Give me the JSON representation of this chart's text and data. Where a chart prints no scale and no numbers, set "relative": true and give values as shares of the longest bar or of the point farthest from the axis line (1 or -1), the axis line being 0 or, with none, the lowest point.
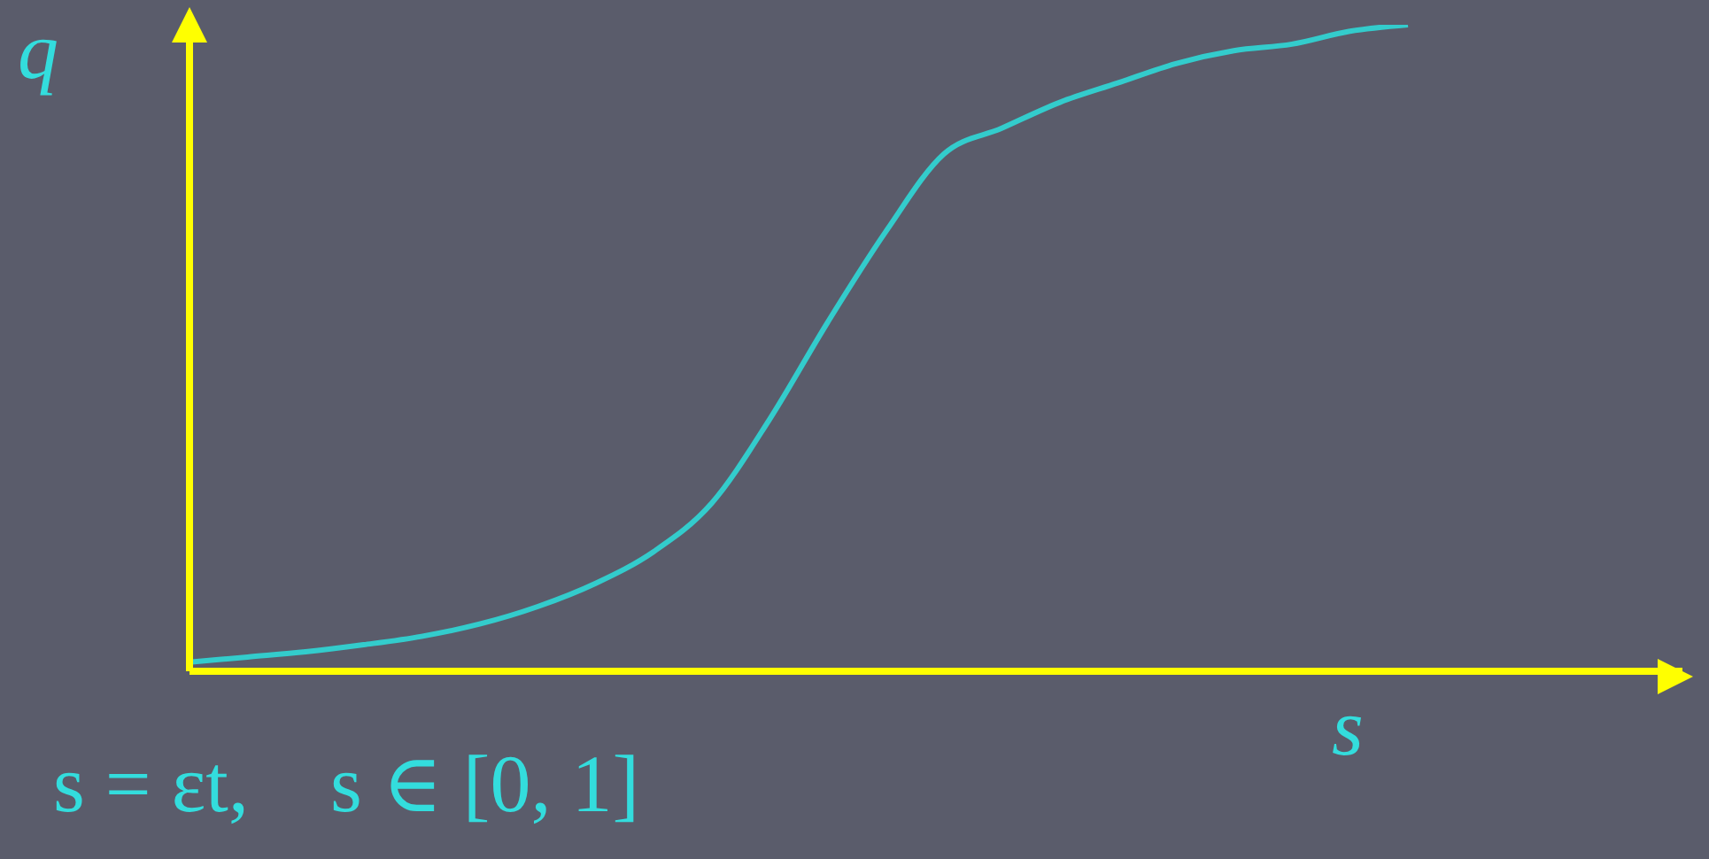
{
  "chart_data": {
    "type": "line",
    "relative": true,
    "xlabel": "s",
    "ylabel": "q",
    "annotations": [
      "s = εt,    s ∈ [0, 1]"
    ],
    "categories": [
      null,
      null,
      null,
      null,
      null,
      null,
      null,
      null,
      null,
      null,
      null,
      null,
      null,
      null,
      null,
      null,
      null,
      null,
      null,
      null,
      null,
      null
    ],
    "series": [
      {
        "color": "#33cccc",
        "values": [
          0.014,
          0.022,
          0.03,
          0.041,
          0.054,
          0.073,
          0.1,
          0.136,
          0.185,
          0.26,
          0.39,
          0.54,
          0.68,
          0.8,
          0.84,
          0.88,
          0.91,
          0.94,
          0.96,
          0.97,
          0.99,
          1
        ]
      }
    ]
  }
}
